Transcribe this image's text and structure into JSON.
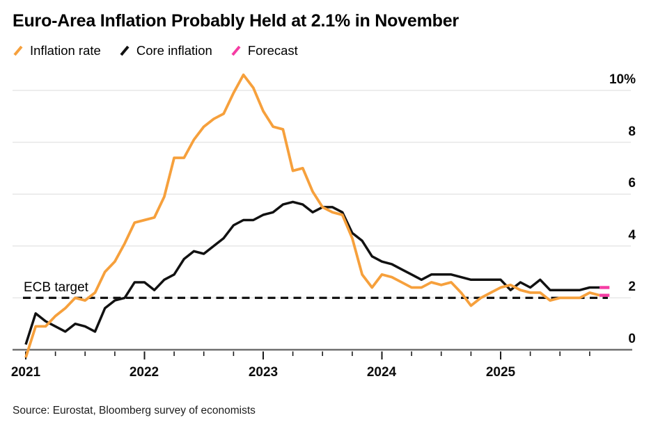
{
  "header": {
    "title": "Euro-Area Inflation Probably Held at 2.1% in November"
  },
  "legend": {
    "items": [
      {
        "label": "Inflation rate",
        "color": "#F6A03C",
        "icon": "slash-icon"
      },
      {
        "label": "Core inflation",
        "color": "#111111",
        "icon": "slash-icon"
      },
      {
        "label": "Forecast",
        "color": "#F53CA3",
        "icon": "slash-icon"
      }
    ]
  },
  "chart_data": {
    "type": "line",
    "title": "Euro-Area Inflation Probably Held at 2.1% in November",
    "unit": "% year-over-year",
    "x_start": "2020-12",
    "x_end_actual": "2025-10",
    "x_end_forecast": "2025-11",
    "grid": "horizontal-only",
    "legend_position": "top-left",
    "y_axis": {
      "range": [
        0,
        10
      ],
      "ticks": [
        0,
        2,
        4,
        6,
        8,
        10
      ],
      "tick_labels": [
        "0",
        "2",
        "4",
        "6",
        "8",
        "10%"
      ]
    },
    "x_axis": {
      "year_labels": [
        "2021",
        "2022",
        "2023",
        "2024",
        "2025"
      ],
      "minor_tick_interval_months": 3
    },
    "ecb_target": {
      "label": "ECB target",
      "value": 2
    },
    "forecast_color": "#F53CA3",
    "series": [
      {
        "name": "Inflation rate",
        "color": "#F6A03C",
        "values_monthly_from_2020_12": [
          -0.3,
          0.9,
          0.9,
          1.3,
          1.6,
          2.0,
          1.9,
          2.2,
          3.0,
          3.4,
          4.1,
          4.9,
          5.0,
          5.1,
          5.9,
          7.4,
          7.4,
          8.1,
          8.6,
          8.9,
          9.1,
          9.9,
          10.6,
          10.1,
          9.2,
          8.6,
          8.5,
          6.9,
          7.0,
          6.1,
          5.5,
          5.3,
          5.2,
          4.3,
          2.9,
          2.4,
          2.9,
          2.8,
          2.6,
          2.4,
          2.4,
          2.6,
          2.5,
          2.6,
          2.2,
          1.7,
          2.0,
          2.2,
          2.4,
          2.5,
          2.3,
          2.2,
          2.2,
          1.9,
          2.0,
          2.0,
          2.0,
          2.2,
          2.1
        ],
        "forecast_2025_11": 2.1
      },
      {
        "name": "Core inflation",
        "color": "#111111",
        "values_monthly_from_2020_12": [
          0.2,
          1.4,
          1.1,
          0.9,
          0.7,
          1.0,
          0.9,
          0.7,
          1.6,
          1.9,
          2.0,
          2.6,
          2.6,
          2.3,
          2.7,
          2.9,
          3.5,
          3.8,
          3.7,
          4.0,
          4.3,
          4.8,
          5.0,
          5.0,
          5.2,
          5.3,
          5.6,
          5.7,
          5.6,
          5.3,
          5.5,
          5.5,
          5.3,
          4.5,
          4.2,
          3.6,
          3.4,
          3.3,
          3.1,
          2.9,
          2.7,
          2.9,
          2.9,
          2.9,
          2.8,
          2.7,
          2.7,
          2.7,
          2.7,
          2.3,
          2.6,
          2.4,
          2.7,
          2.3,
          2.3,
          2.3,
          2.3,
          2.4,
          2.4
        ],
        "forecast_2025_11": 2.4
      }
    ]
  },
  "source": {
    "text": "Source: Eurostat, Bloomberg survey of economists"
  }
}
